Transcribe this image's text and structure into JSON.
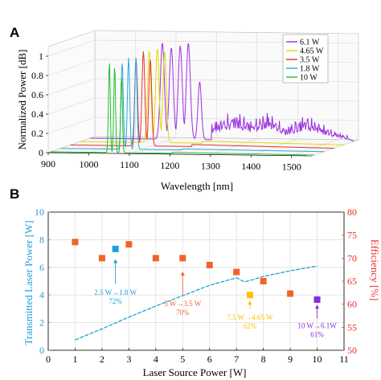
{
  "panels": [
    {
      "letter": "A"
    },
    {
      "letter": "B"
    }
  ],
  "colors": {
    "p6_1": "#9b30e0",
    "p4_65": "#e8d800",
    "p3_5": "#e8302a",
    "p1_8": "#2aa8e0",
    "p10": "#22c02a",
    "blue": "#1f9fd8",
    "orange": "#f0642a",
    "yellow": "#f5c400",
    "purple": "#8a2be2"
  },
  "chart_data": [
    {
      "type": "line",
      "panel": "A",
      "projection": "3d-waterfall",
      "xlabel": "Wavelength [nm]",
      "ylabel": "Normalized Power [dB]",
      "xlim": [
        900,
        1550
      ],
      "ylim": [
        0,
        1.1
      ],
      "x_ticks": [
        "900",
        "1000",
        "1100",
        "1200",
        "1300",
        "1400",
        "1500"
      ],
      "y_ticks": [
        "0",
        "0.2",
        "0.4",
        "0.6",
        "0.8",
        "1"
      ],
      "legend_position": "top-right",
      "series": [
        {
          "name": "6.1 W",
          "color_key": "p6_1",
          "peaks": [
            {
              "x": 1078,
              "y": 1.0,
              "w": 7
            },
            {
              "x": 1100,
              "y": 0.95,
              "w": 7
            },
            {
              "x": 1122,
              "y": 0.97,
              "w": 7
            },
            {
              "x": 1142,
              "y": 1.0,
              "w": 7
            },
            {
              "x": 1170,
              "y": 0.6,
              "w": 6
            }
          ],
          "tail": [
            {
              "x": 1200,
              "y": 0.2
            },
            {
              "x": 1260,
              "y": 0.32
            },
            {
              "x": 1300,
              "y": 0.22
            },
            {
              "x": 1340,
              "y": 0.33
            },
            {
              "x": 1380,
              "y": 0.15
            },
            {
              "x": 1430,
              "y": 0.3
            },
            {
              "x": 1500,
              "y": 0.12
            },
            {
              "x": 1540,
              "y": 0.05
            }
          ]
        },
        {
          "name": "4.65 W",
          "color_key": "p4_65",
          "peaks": [
            {
              "x": 1070,
              "y": 0.95,
              "w": 6
            },
            {
              "x": 1090,
              "y": 0.98,
              "w": 6
            },
            {
              "x": 1108,
              "y": 0.95,
              "w": 6
            }
          ],
          "tail": [
            {
              "x": 1200,
              "y": 0.02
            },
            {
              "x": 1540,
              "y": 0.0
            }
          ]
        },
        {
          "name": "3.5 W",
          "color_key": "p3_5",
          "peaks": [
            {
              "x": 1062,
              "y": 0.9,
              "w": 5
            },
            {
              "x": 1080,
              "y": 0.98,
              "w": 5
            },
            {
              "x": 1097,
              "y": 0.9,
              "w": 5
            }
          ],
          "tail": [
            {
              "x": 1200,
              "y": 0.02
            },
            {
              "x": 1540,
              "y": 0.0
            }
          ]
        },
        {
          "name": "1.8 W",
          "color_key": "p1_8",
          "peaks": [
            {
              "x": 1052,
              "y": 0.9,
              "w": 4
            },
            {
              "x": 1068,
              "y": 0.95,
              "w": 4
            },
            {
              "x": 1086,
              "y": 0.95,
              "w": 4
            }
          ],
          "tail": [
            {
              "x": 1200,
              "y": 0.01
            },
            {
              "x": 1540,
              "y": 0.0
            }
          ]
        },
        {
          "name": "10 W",
          "color_key": "p10",
          "peaks": [
            {
              "x": 1045,
              "y": 0.95,
              "w": 3
            },
            {
              "x": 1058,
              "y": 0.9,
              "w": 3
            },
            {
              "x": 1075,
              "y": 0.8,
              "w": 3
            }
          ],
          "tail": [
            {
              "x": 1200,
              "y": 0.01
            },
            {
              "x": 1540,
              "y": 0.0
            }
          ]
        }
      ]
    },
    {
      "type": "scatter",
      "panel": "B",
      "xlabel": "Laser Source Power [W]",
      "ylabel_left": "Transmitted Laser Power [W]",
      "ylabel_right": "Efficiency [%]",
      "xlim": [
        0,
        11
      ],
      "ylim_left": [
        0,
        10
      ],
      "ylim_right": [
        50,
        80
      ],
      "x_ticks": [
        "0",
        "1",
        "2",
        "3",
        "4",
        "5",
        "6",
        "7",
        "8",
        "9",
        "10",
        "11"
      ],
      "y_ticks_left": [
        "0",
        "2",
        "4",
        "6",
        "8",
        "10"
      ],
      "y_ticks_right": [
        "50",
        "55",
        "60",
        "65",
        "70",
        "75",
        "80"
      ],
      "grid": true,
      "transmitted_line": {
        "x": [
          1,
          2,
          3,
          4,
          5,
          6,
          7,
          7.3,
          7.6,
          8,
          9,
          10
        ],
        "y": [
          0.75,
          1.55,
          2.4,
          3.2,
          3.95,
          4.7,
          5.25,
          4.95,
          5.1,
          5.35,
          5.75,
          6.1
        ]
      },
      "efficiency_points": [
        {
          "x": 1,
          "y": 73.5,
          "color_key": "orange"
        },
        {
          "x": 2,
          "y": 70,
          "color_key": "orange"
        },
        {
          "x": 2.5,
          "y": 72,
          "color_key": "blue"
        },
        {
          "x": 3,
          "y": 73,
          "color_key": "orange"
        },
        {
          "x": 4,
          "y": 70,
          "color_key": "orange"
        },
        {
          "x": 5,
          "y": 70,
          "color_key": "orange"
        },
        {
          "x": 6,
          "y": 68.5,
          "color_key": "orange"
        },
        {
          "x": 7,
          "y": 67,
          "color_key": "orange"
        },
        {
          "x": 7.5,
          "y": 62,
          "color_key": "yellow"
        },
        {
          "x": 8,
          "y": 65,
          "color_key": "orange"
        },
        {
          "x": 9,
          "y": 62.3,
          "color_key": "orange"
        },
        {
          "x": 10,
          "y": 61,
          "color_key": "purple"
        }
      ],
      "annotations": [
        {
          "lines": [
            "2.5 W→1.8 W",
            "72%"
          ],
          "color_key": "blue",
          "x": 2.5,
          "y_text": 4.0,
          "arrow_from": 4.8,
          "arrow_to": 6.6
        },
        {
          "lines": [
            "5 W→3.5 W",
            "70%"
          ],
          "color_key": "orange",
          "x": 5,
          "y_text": 3.2,
          "arrow_from": 4.0,
          "arrow_to": 5.7
        },
        {
          "lines": [
            "7.5 W→4.65 W",
            "62%"
          ],
          "color_key": "yellow",
          "x": 7.5,
          "y_text": 2.2,
          "arrow_from": 3.0,
          "arrow_to": 3.6
        },
        {
          "lines": [
            "10 W→6.1W",
            "61%"
          ],
          "color_key": "purple",
          "x": 10,
          "y_text": 1.6,
          "arrow_from": 2.3,
          "arrow_to": 3.3
        }
      ]
    }
  ]
}
